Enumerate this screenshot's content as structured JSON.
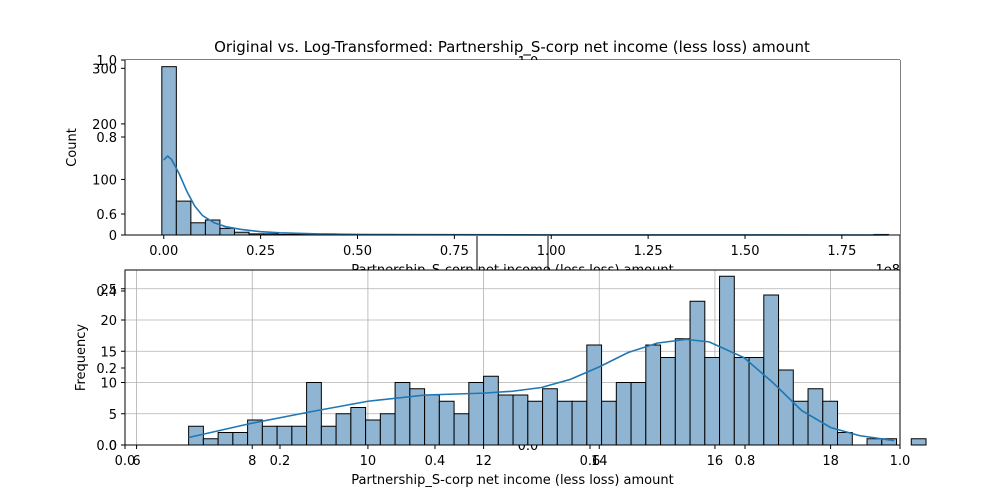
{
  "title": "Original vs. Log-Transformed: Partnership_S-corp net income (less loss) amount",
  "colors": {
    "bar_fill": "#8fb5d3",
    "bar_stroke": "#000000",
    "kde_line": "#1f77b4",
    "grid": "#b0b0b0"
  },
  "chart_data": [
    {
      "type": "histogram",
      "name": "original",
      "xlabel": "Partnership_S-corp net income (less loss) amount",
      "ylabel": "Count",
      "xlim": [
        -0.1,
        1.9
      ],
      "ylim": [
        0,
        315
      ],
      "x_offset_text": "1e8",
      "xticks": [
        0.0,
        0.25,
        0.5,
        0.75,
        1.0,
        1.25,
        1.5,
        1.75
      ],
      "xtick_labels": [
        "0.00",
        "0.25",
        "0.50",
        "0.75",
        "1.00",
        "1.25",
        "1.50",
        "1.75"
      ],
      "yticks": [
        0,
        100,
        200,
        300
      ],
      "ytick_labels": [
        "0",
        "100",
        "200",
        "300"
      ],
      "bin_start": -0.005,
      "bin_width": 0.0375,
      "counts": [
        303,
        61,
        22,
        27,
        12,
        5,
        2,
        2,
        1,
        1,
        1,
        2,
        0,
        0,
        0,
        1,
        0,
        0,
        0,
        0,
        0,
        0,
        0,
        0,
        0,
        0,
        0,
        0,
        0,
        0,
        0,
        0,
        0,
        0,
        0,
        0,
        0,
        0,
        0,
        0,
        0,
        0,
        0,
        0,
        0,
        0,
        0,
        0,
        0,
        1
      ],
      "kde": {
        "x": [
          0.0,
          0.01,
          0.02,
          0.04,
          0.06,
          0.08,
          0.1,
          0.13,
          0.16,
          0.2,
          0.25,
          0.3,
          0.4,
          0.5,
          0.75,
          1.0,
          1.5,
          1.87
        ],
        "y": [
          135,
          142,
          136,
          110,
          78,
          52,
          35,
          22,
          15,
          10,
          6,
          4,
          2,
          1,
          0.5,
          0.2,
          0.1,
          0
        ]
      }
    },
    {
      "type": "histogram",
      "name": "log_transformed",
      "xlabel": "Partnership_S-corp net income (less loss) amount",
      "ylabel": "Frequency",
      "xlim": [
        5.8,
        19.2
      ],
      "ylim": [
        0,
        28
      ],
      "grid": true,
      "xticks": [
        6,
        8,
        10,
        12,
        14,
        16,
        18
      ],
      "xtick_labels": [
        "6",
        "8",
        "10",
        "12",
        "14",
        "16",
        "18"
      ],
      "yticks": [
        0,
        5,
        10,
        15,
        20,
        25
      ],
      "ytick_labels": [
        "0",
        "5",
        "10",
        "15",
        "20",
        "25"
      ],
      "bin_start": 6.9,
      "bin_width": 0.255,
      "counts": [
        3,
        1,
        2,
        2,
        4,
        3,
        3,
        3,
        10,
        3,
        5,
        6,
        4,
        5,
        10,
        9,
        8,
        7,
        5,
        10,
        11,
        8,
        8,
        7,
        9,
        7,
        7,
        16,
        7,
        10,
        10,
        16,
        14,
        17,
        23,
        14,
        27,
        14,
        14,
        24,
        12,
        7,
        9,
        7,
        2,
        0,
        1,
        1,
        0,
        1
      ],
      "kde": {
        "x": [
          6.9,
          8.0,
          9.0,
          10.0,
          11.0,
          12.0,
          12.5,
          13.0,
          13.5,
          14.0,
          14.5,
          15.0,
          15.5,
          15.9,
          16.5,
          17.0,
          17.5,
          18.0,
          18.5,
          19.1
        ],
        "y": [
          1.2,
          3.5,
          5.3,
          7.0,
          8.0,
          8.3,
          8.6,
          9.2,
          10.5,
          12.5,
          14.8,
          16.3,
          16.9,
          16.5,
          14.0,
          10.0,
          5.5,
          2.8,
          1.5,
          0.7
        ]
      }
    }
  ],
  "overlay_axes": {
    "xtick_labels": [
      "0.0",
      "0.2",
      "0.4",
      "0.6",
      "0.8",
      "1.0"
    ],
    "ytick_labels": [
      "0.0",
      "0.2",
      "0.4",
      "0.6",
      "0.8",
      "1.0"
    ],
    "top_fragment": "1.0",
    "mid_fragment": "0.0"
  },
  "stray_axes": {
    "top_ytick_labels": [
      "0.0",
      "0.2",
      "0.4",
      "0.6",
      "0.8",
      "1.0"
    ],
    "top_xtick_labels": [
      "0.0",
      "0.2",
      "0.4",
      "0.6",
      "0.8",
      "1.0"
    ],
    "bottom_xtick_labels": [
      "0.0",
      "0.2",
      "0.4",
      "0.6",
      "0.8",
      "1.0"
    ]
  }
}
